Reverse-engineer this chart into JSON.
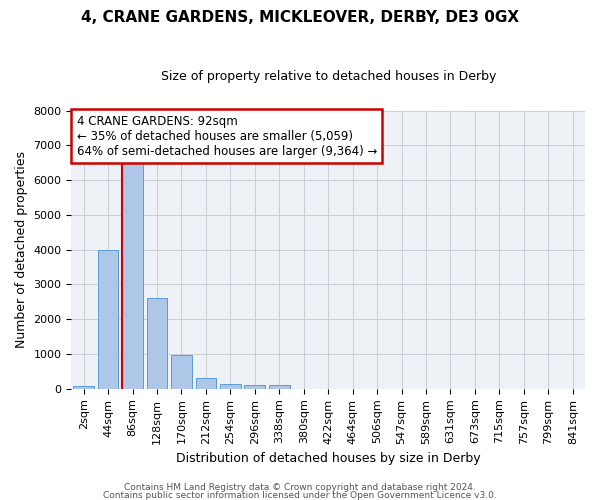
{
  "title": "4, CRANE GARDENS, MICKLEOVER, DERBY, DE3 0GX",
  "subtitle": "Size of property relative to detached houses in Derby",
  "xlabel": "Distribution of detached houses by size in Derby",
  "ylabel": "Number of detached properties",
  "bin_labels": [
    "2sqm",
    "44sqm",
    "86sqm",
    "128sqm",
    "170sqm",
    "212sqm",
    "254sqm",
    "296sqm",
    "338sqm",
    "380sqm",
    "422sqm",
    "464sqm",
    "506sqm",
    "547sqm",
    "589sqm",
    "631sqm",
    "673sqm",
    "715sqm",
    "757sqm",
    "799sqm",
    "841sqm"
  ],
  "bar_values": [
    70,
    4000,
    6600,
    2620,
    960,
    320,
    130,
    110,
    100,
    0,
    0,
    0,
    0,
    0,
    0,
    0,
    0,
    0,
    0,
    0,
    0
  ],
  "bar_color": "#aec6e8",
  "bar_edge_color": "#5b9bd5",
  "vline_color": "#cc0000",
  "ylim": [
    0,
    8000
  ],
  "yticks": [
    0,
    1000,
    2000,
    3000,
    4000,
    5000,
    6000,
    7000,
    8000
  ],
  "annotation_title": "4 CRANE GARDENS: 92sqm",
  "annotation_line1": "← 35% of detached houses are smaller (5,059)",
  "annotation_line2": "64% of semi-detached houses are larger (9,364) →",
  "annotation_box_color": "#cc0000",
  "footer_line1": "Contains HM Land Registry data © Crown copyright and database right 2024.",
  "footer_line2": "Contains public sector information licensed under the Open Government Licence v3.0.",
  "bg_color": "#eef2f7",
  "grid_color": "#c8cfd8",
  "title_fontsize": 11,
  "subtitle_fontsize": 9,
  "ylabel_fontsize": 9,
  "xlabel_fontsize": 9,
  "tick_fontsize": 8,
  "annot_fontsize": 8.5,
  "footer_fontsize": 6.5
}
